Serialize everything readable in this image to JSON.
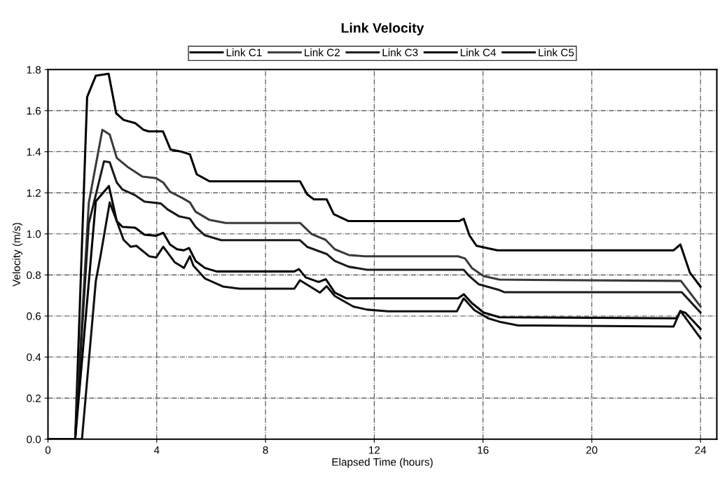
{
  "chart_data": {
    "type": "line",
    "title": "Link Velocity",
    "xlabel": "Elapsed Time (hours)",
    "ylabel": "Velocity (m/s)",
    "xlim": [
      0,
      24.6
    ],
    "ylim": [
      0,
      1.8
    ],
    "xticks": [
      0,
      4,
      8,
      12,
      16,
      20,
      24
    ],
    "yticks": [
      {
        "value": 0,
        "label": "0.0"
      },
      0.2,
      0.4,
      0.6,
      0.8,
      {
        "value": 1,
        "label": "1.0"
      },
      1.2,
      1.4,
      1.6,
      1.8
    ],
    "grid": true,
    "legend": "top",
    "marker": "none",
    "line_style": "solid",
    "series": [
      {
        "name": "Link C1",
        "color": "#000000",
        "x": [
          0,
          1.0,
          1.44,
          1.76,
          2.23,
          2.51,
          2.78,
          3.21,
          3.51,
          3.71,
          4.23,
          4.51,
          4.92,
          5.22,
          5.47,
          5.94,
          9.27,
          9.53,
          9.78,
          10.25,
          10.51,
          11.06,
          15.12,
          15.29,
          15.5,
          15.76,
          16.53,
          23.01,
          23.26,
          23.61,
          24.0
        ],
        "values": [
          0,
          0,
          1.667,
          1.77,
          1.78,
          1.587,
          1.555,
          1.539,
          1.507,
          1.499,
          1.499,
          1.41,
          1.4,
          1.387,
          1.29,
          1.256,
          1.256,
          1.193,
          1.168,
          1.168,
          1.096,
          1.062,
          1.062,
          1.074,
          0.993,
          0.942,
          0.92,
          0.92,
          0.948,
          0.811,
          0.743
        ]
      },
      {
        "name": "Link C2",
        "color": "#3a3a3a",
        "x": [
          0,
          1.0,
          1.5,
          2.0,
          2.27,
          2.53,
          2.95,
          3.47,
          3.98,
          4.24,
          4.49,
          4.92,
          5.22,
          5.43,
          5.94,
          6.54,
          9.27,
          9.7,
          10.21,
          10.55,
          11.06,
          11.66,
          15.08,
          15.34,
          15.59,
          16.02,
          16.61,
          23.28,
          24.0
        ],
        "values": [
          0,
          0,
          1.15,
          1.507,
          1.484,
          1.37,
          1.324,
          1.279,
          1.271,
          1.25,
          1.205,
          1.176,
          1.153,
          1.108,
          1.068,
          1.053,
          1.053,
          0.999,
          0.971,
          0.925,
          0.897,
          0.891,
          0.891,
          0.88,
          0.834,
          0.794,
          0.777,
          0.771,
          0.646
        ]
      },
      {
        "name": "Link C3",
        "color": "#1a1a1a",
        "x": [
          0,
          1.0,
          1.5,
          2.06,
          2.27,
          2.53,
          2.74,
          3.21,
          3.55,
          4.15,
          4.4,
          4.83,
          5.22,
          5.43,
          5.77,
          6.37,
          9.27,
          9.53,
          10.25,
          10.55,
          11.06,
          11.74,
          15.29,
          15.5,
          15.85,
          16.61,
          16.78,
          23.31,
          24.0
        ],
        "values": [
          0,
          0,
          1.05,
          1.353,
          1.349,
          1.25,
          1.216,
          1.188,
          1.157,
          1.148,
          1.119,
          1.085,
          1.074,
          1.034,
          0.993,
          0.969,
          0.969,
          0.937,
          0.902,
          0.868,
          0.84,
          0.825,
          0.825,
          0.794,
          0.754,
          0.726,
          0.716,
          0.716,
          0.617
        ]
      },
      {
        "name": "Link C4",
        "color": "#000000",
        "x": [
          0,
          1.0,
          1.76,
          2.24,
          2.53,
          2.74,
          3.21,
          3.55,
          3.98,
          4.24,
          4.49,
          4.75,
          5.0,
          5.19,
          5.43,
          5.77,
          6.2,
          9.06,
          9.23,
          9.48,
          9.95,
          10.22,
          10.55,
          10.98,
          15.08,
          15.29,
          15.59,
          16.02,
          16.61,
          23.11,
          23.26,
          23.45,
          24.0
        ],
        "values": [
          0,
          0,
          1.159,
          1.233,
          1.062,
          1.034,
          1.03,
          0.996,
          0.991,
          1.005,
          0.948,
          0.925,
          0.92,
          0.931,
          0.868,
          0.834,
          0.817,
          0.817,
          0.828,
          0.788,
          0.766,
          0.779,
          0.714,
          0.686,
          0.686,
          0.706,
          0.663,
          0.617,
          0.594,
          0.589,
          0.623,
          0.615,
          0.537
        ]
      },
      {
        "name": "Link C5",
        "color": "#101010",
        "x": [
          0,
          1.25,
          1.76,
          1.93,
          2.27,
          2.53,
          2.78,
          3.04,
          3.25,
          3.72,
          3.98,
          4.24,
          4.66,
          5.0,
          5.22,
          5.35,
          5.77,
          6.45,
          7.05,
          9.06,
          9.27,
          10.0,
          10.25,
          10.55,
          11.23,
          11.74,
          12.51,
          15.04,
          15.29,
          15.68,
          16.19,
          16.61,
          17.3,
          23.01,
          23.26,
          24.0
        ],
        "values": [
          0,
          0,
          0.771,
          0.891,
          1.153,
          1.062,
          0.971,
          0.937,
          0.942,
          0.891,
          0.885,
          0.937,
          0.862,
          0.834,
          0.891,
          0.845,
          0.783,
          0.743,
          0.733,
          0.733,
          0.774,
          0.714,
          0.745,
          0.697,
          0.646,
          0.631,
          0.623,
          0.623,
          0.686,
          0.629,
          0.589,
          0.572,
          0.554,
          0.549,
          0.625,
          0.492
        ]
      }
    ]
  }
}
